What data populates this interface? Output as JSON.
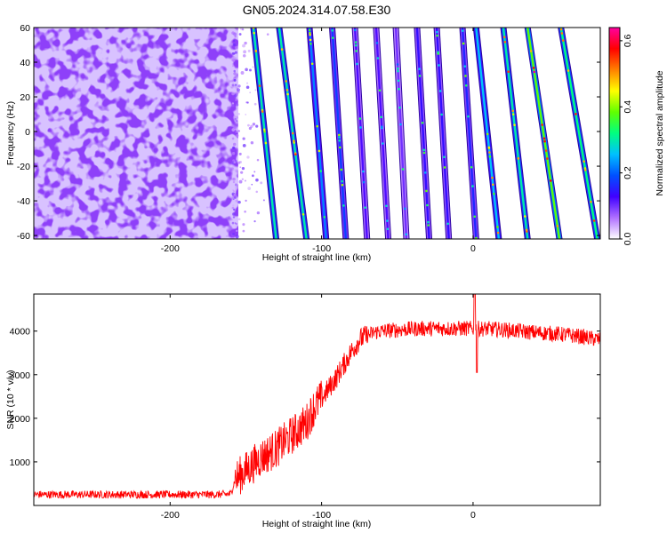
{
  "figure": {
    "title": "GN05.2024.314.07.58.E30"
  },
  "chart_data": [
    {
      "type": "heatmap",
      "title": "GN05.2024.314.07.58.E30",
      "xlabel": "Height of straight line (km)",
      "ylabel": "Frequency (Hz)",
      "xlim": [
        -290,
        84
      ],
      "ylim": [
        -62,
        60
      ],
      "x_ticks": [
        -200,
        -100,
        0
      ],
      "x_tick_labels": [
        "-200",
        "-100",
        "0"
      ],
      "y_ticks": [
        -60,
        -40,
        -20,
        0,
        20,
        40,
        60
      ],
      "y_tick_labels": [
        "-60",
        "-40",
        "-20",
        "0",
        "20",
        "40",
        "60"
      ],
      "noise_region": {
        "x_start": -290,
        "x_end": -155
      },
      "tracks": [
        {
          "x_top": -145,
          "x_bottom": -130,
          "level": 0.3
        },
        {
          "x_top": -128,
          "x_bottom": -110,
          "level": 0.3
        },
        {
          "x_top": -108,
          "x_bottom": -97,
          "level": 0.22
        },
        {
          "x_top": -93,
          "x_bottom": -84,
          "level": 0.18
        },
        {
          "x_top": -78,
          "x_bottom": -70,
          "level": 0.12
        },
        {
          "x_top": -64,
          "x_bottom": -56,
          "level": 0.12
        },
        {
          "x_top": -51,
          "x_bottom": -44,
          "level": 0.1
        },
        {
          "x_top": -37,
          "x_bottom": -29,
          "level": 0.14
        },
        {
          "x_top": -24,
          "x_bottom": -16,
          "level": 0.14
        },
        {
          "x_top": -7,
          "x_bottom": 2,
          "level": 0.16
        },
        {
          "x_top": 2,
          "x_bottom": 17,
          "level": 0.26
        },
        {
          "x_top": 20,
          "x_bottom": 36,
          "level": 0.3
        },
        {
          "x_top": 36,
          "x_bottom": 57,
          "level": 0.38
        },
        {
          "x_top": 58,
          "x_bottom": 82,
          "level": 0.32
        }
      ],
      "colorbar": {
        "label": "Normalized spectral amplitude",
        "range": [
          0,
          0.64
        ],
        "ticks": [
          0.0,
          0.2,
          0.4,
          0.6
        ],
        "tick_labels": [
          "0.0",
          "0.2",
          "0.4",
          "0.6"
        ],
        "colors": [
          "#ffffff",
          "#b070ff",
          "#4000ff",
          "#0050ff",
          "#00c0ff",
          "#00ff80",
          "#60ff00",
          "#ffff00",
          "#ff8000",
          "#ff0000",
          "#ff00a0"
        ]
      }
    },
    {
      "type": "line",
      "xlabel": "Height of straight line (km)",
      "ylabel": "SNR (10 * v/v)",
      "xlim": [
        -290,
        84
      ],
      "ylim": [
        0,
        4850
      ],
      "x_ticks": [
        -200,
        -100,
        0
      ],
      "x_tick_labels": [
        "-200",
        "-100",
        "0"
      ],
      "y_ticks": [
        1000,
        2000,
        3000,
        4000
      ],
      "y_tick_labels": [
        "1000",
        "2000",
        "3000",
        "4000"
      ],
      "line_color": "#ff0000",
      "series": [
        {
          "x": [
            -290,
            -270,
            -250,
            -230,
            -210,
            -190,
            -170,
            -160,
            -157,
            -150,
            -140,
            -130,
            -125,
            -115,
            -110,
            -105,
            -100,
            -95,
            -90,
            -85,
            -80,
            -75,
            -70,
            -65,
            -60,
            -50,
            -40,
            -30,
            -20,
            -10,
            0,
            10,
            20,
            30,
            40,
            50,
            60,
            70,
            84
          ],
          "y": [
            250,
            250,
            250,
            250,
            250,
            250,
            250,
            260,
            600,
            800,
            1100,
            1300,
            1450,
            1750,
            1900,
            2250,
            2450,
            2700,
            2950,
            3250,
            3550,
            3800,
            3900,
            3970,
            4000,
            4030,
            4050,
            4060,
            4060,
            4060,
            4060,
            4050,
            4030,
            4000,
            3970,
            3950,
            3920,
            3880,
            3800
          ]
        }
      ]
    }
  ]
}
